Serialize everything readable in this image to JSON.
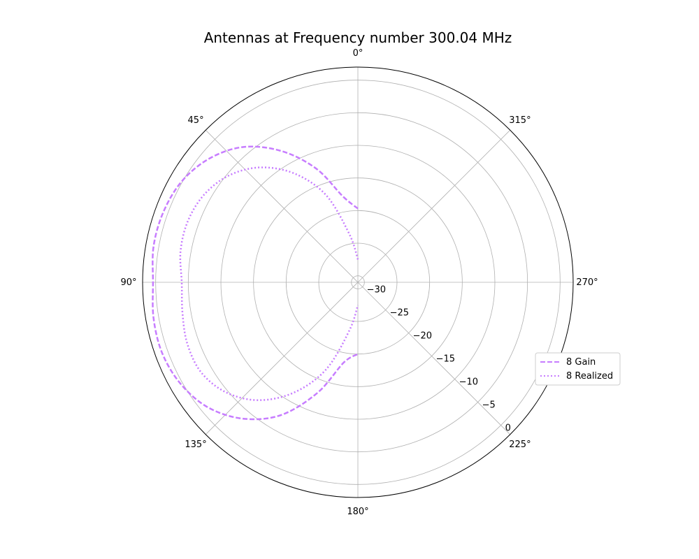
{
  "chart_data": {
    "type": "line",
    "subtype": "polar",
    "title": "Antennas at Frequency number 300.04 MHz",
    "angular_ticks": [
      "0°",
      "45°",
      "90°",
      "135°",
      "180°",
      "225°",
      "270°",
      "315°"
    ],
    "angular_tick_values": [
      0,
      45,
      90,
      135,
      180,
      225,
      270,
      315
    ],
    "theta_direction": "counterclockwise",
    "theta_zero": "top",
    "radial_ticks": [
      "−30",
      "−25",
      "−20",
      "−15",
      "−10",
      "−5",
      "0"
    ],
    "radial_tick_values": [
      -30,
      -25,
      -20,
      -15,
      -10,
      -5,
      0
    ],
    "rlim": [
      -31,
      2
    ],
    "grid": true,
    "legend_position": "right",
    "series": [
      {
        "name": "8 Gain",
        "color": "#c77dff",
        "style": "dashed",
        "theta": [
          0,
          10,
          20,
          30,
          40,
          50,
          60,
          70,
          80,
          90,
          100,
          110,
          120,
          130,
          140,
          150,
          160,
          170,
          180
        ],
        "r": [
          -19.7,
          -17.6,
          -12.5,
          -7.8,
          -3.9,
          -1.4,
          0.1,
          0.7,
          0.8,
          0.4,
          0.8,
          0.9,
          0.3,
          -1.1,
          -3.7,
          -7.5,
          -13.0,
          -18.5,
          -20.0
        ]
      },
      {
        "name": "8 Realized",
        "color": "#c77dff",
        "style": "dotted",
        "theta": [
          0,
          10,
          20,
          30,
          40,
          50,
          60,
          70,
          80,
          90,
          100,
          110,
          120,
          130,
          140,
          150,
          160,
          170,
          180
        ],
        "r": [
          -27.5,
          -23.5,
          -16.8,
          -11.8,
          -8.0,
          -5.4,
          -3.9,
          -3.3,
          -3.4,
          -4.0,
          -3.7,
          -3.2,
          -3.3,
          -4.7,
          -7.4,
          -11.5,
          -16.8,
          -23.5,
          -27.5
        ]
      }
    ]
  }
}
